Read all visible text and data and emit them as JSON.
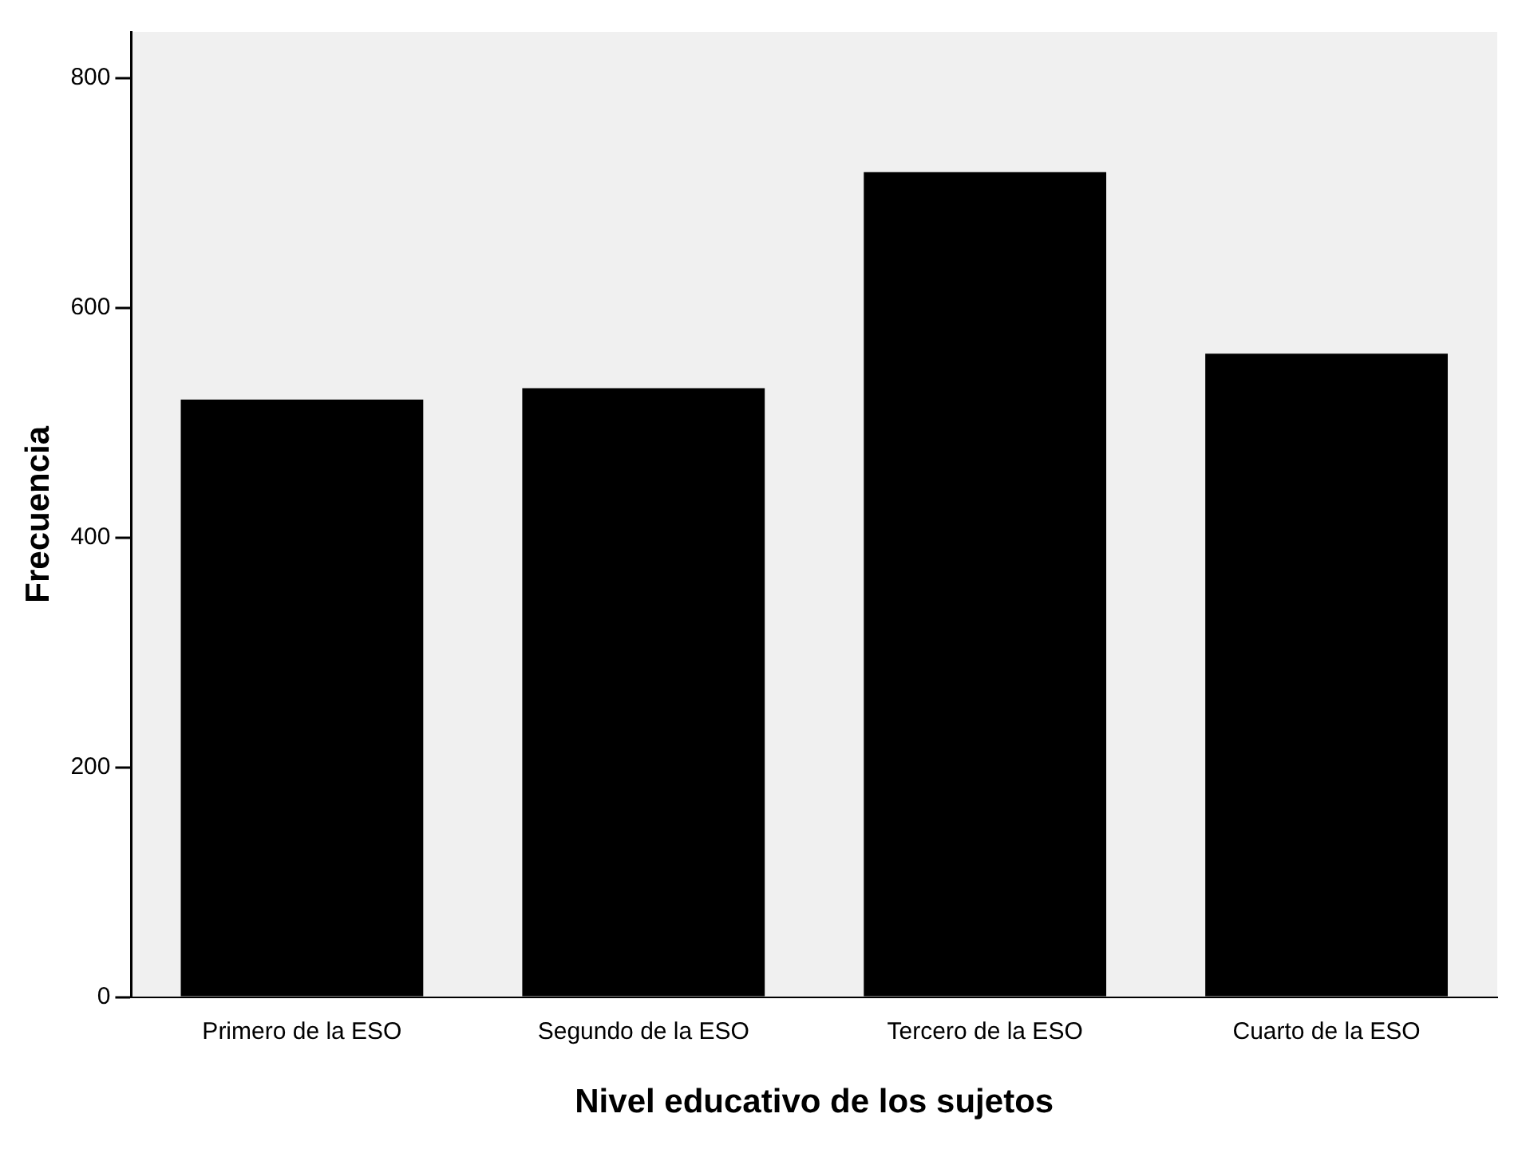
{
  "chart_data": {
    "type": "bar",
    "xlabel": "Nivel educativo de los sujetos",
    "ylabel": "Frecuencia",
    "categories": [
      "Primero de la ESO",
      "Segundo de la ESO",
      "Tercero de la ESO",
      "Cuarto de la ESO"
    ],
    "values": [
      520,
      530,
      718,
      560
    ],
    "color": "#000000",
    "ylim": [
      0,
      840
    ],
    "yticks": [
      0,
      200,
      400,
      600,
      800
    ],
    "grid": false,
    "legend": false
  }
}
